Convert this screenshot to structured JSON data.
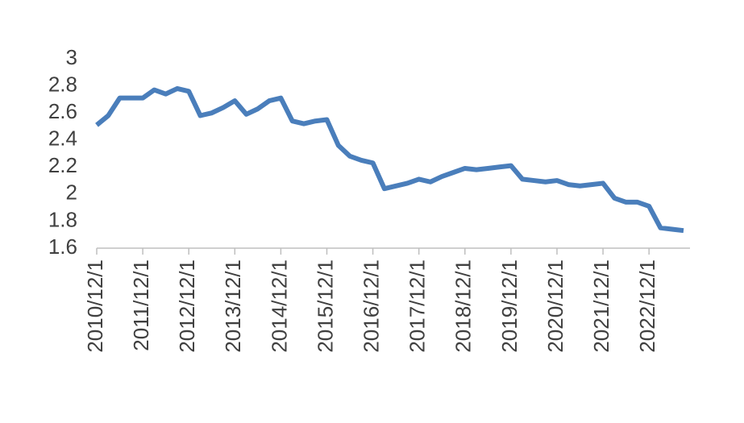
{
  "chart_data": {
    "type": "line",
    "categories": [
      "2010/12/1",
      null,
      null,
      null,
      "2011/12/1",
      null,
      null,
      null,
      "2012/12/1",
      null,
      null,
      null,
      "2013/12/1",
      null,
      null,
      null,
      "2014/12/1",
      null,
      null,
      null,
      "2015/12/1",
      null,
      null,
      null,
      "2016/12/1",
      null,
      null,
      null,
      "2017/12/1",
      null,
      null,
      null,
      "2018/12/1",
      null,
      null,
      null,
      "2019/12/1",
      null,
      null,
      null,
      "2020/12/1",
      null,
      null,
      null,
      "2021/12/1",
      null,
      null,
      null,
      "2022/12/1",
      null,
      null,
      null
    ],
    "series": [
      {
        "color": "#4a7ebb",
        "values": [
          2.51,
          2.58,
          2.71,
          2.71,
          2.71,
          2.77,
          2.74,
          2.78,
          2.76,
          2.58,
          2.6,
          2.64,
          2.69,
          2.59,
          2.63,
          2.69,
          2.71,
          2.54,
          2.52,
          2.54,
          2.55,
          2.36,
          2.28,
          2.25,
          2.23,
          2.04,
          2.06,
          2.08,
          2.11,
          2.09,
          2.13,
          2.16,
          2.19,
          2.18,
          2.19,
          2.2,
          2.21,
          2.11,
          2.1,
          2.09,
          2.1,
          2.07,
          2.06,
          2.07,
          2.08,
          1.97,
          1.94,
          1.94,
          1.91,
          1.75,
          1.74,
          1.73
        ]
      }
    ],
    "ylim": [
      1.6,
      3
    ],
    "yticks": [
      1.6,
      1.8,
      2,
      2.2,
      2.4,
      2.6,
      2.8,
      3
    ],
    "grid": false
  }
}
